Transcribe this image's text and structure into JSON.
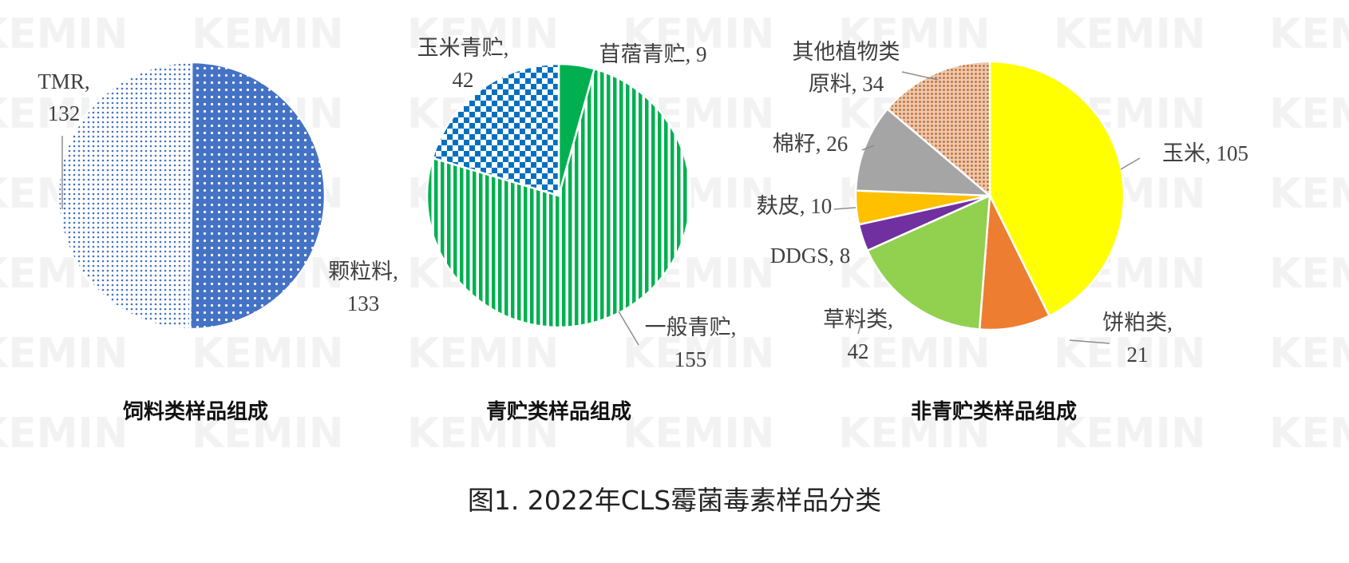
{
  "watermark": "KEMIN",
  "caption": "图1. 2022年CLS霉菌毒素样品分类",
  "chart_data": [
    {
      "type": "pie",
      "title": "饲料类样品组成",
      "slices": [
        {
          "name": "颗粒料",
          "value": 133,
          "color": "#4472c4",
          "pattern": "white-dots-on-blue"
        },
        {
          "name": "TMR",
          "value": 132,
          "color": "#4472c4",
          "pattern": "blue-dots-on-white"
        }
      ]
    },
    {
      "type": "pie",
      "title": "青贮类样品组成",
      "slices": [
        {
          "name": "苜蓿青贮",
          "value": 9,
          "color": "#00b050",
          "pattern": "solid"
        },
        {
          "name": "一般青贮",
          "value": 155,
          "color": "#00b050",
          "pattern": "vertical-stripes"
        },
        {
          "name": "玉米青贮",
          "value": 42,
          "color": "#0070c0",
          "pattern": "checkerboard"
        }
      ]
    },
    {
      "type": "pie",
      "title": "非青贮类样品组成",
      "slices": [
        {
          "name": "玉米",
          "value": 105,
          "color": "#ffff00",
          "pattern": "solid"
        },
        {
          "name": "饼粕类",
          "value": 21,
          "color": "#ed7d31",
          "pattern": "solid"
        },
        {
          "name": "草料类",
          "value": 42,
          "color": "#92d050",
          "pattern": "solid"
        },
        {
          "name": "DDGS",
          "value": 8,
          "color": "#7030a0",
          "pattern": "solid"
        },
        {
          "name": "麸皮",
          "value": 10,
          "color": "#ffc000",
          "pattern": "solid"
        },
        {
          "name": "棉籽",
          "value": 26,
          "color": "#a5a5a5",
          "pattern": "solid"
        },
        {
          "name": "其他植物类原料",
          "value": 34,
          "color": "#c55a11",
          "pattern": "dots"
        }
      ]
    }
  ]
}
